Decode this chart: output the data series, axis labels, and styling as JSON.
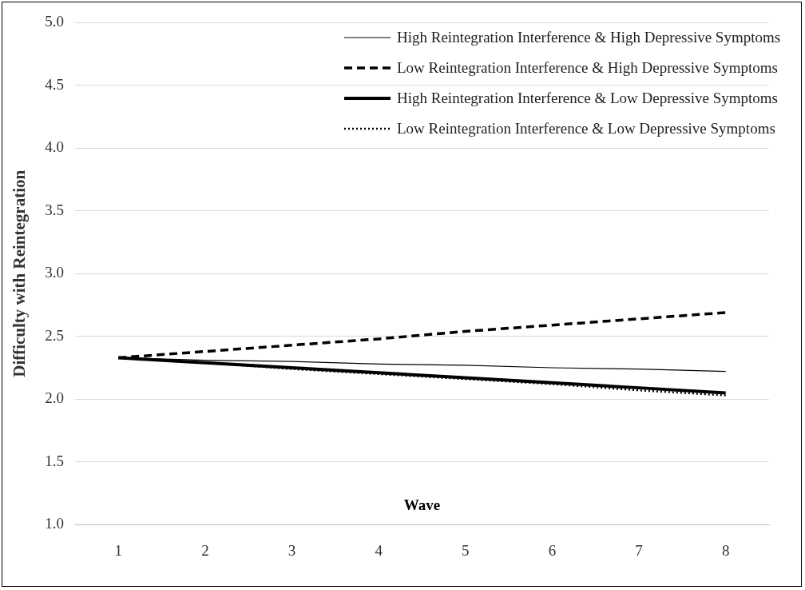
{
  "chart_data": {
    "type": "line",
    "xlabel": "Wave",
    "ylabel": "Difficulty with Reintegration",
    "categories": [
      "1",
      "2",
      "3",
      "4",
      "5",
      "6",
      "7",
      "8"
    ],
    "ylim": [
      1,
      5
    ],
    "yticks": [
      {
        "value": 1,
        "label": "1.0"
      },
      {
        "value": 1.5,
        "label": "1.5"
      },
      {
        "value": 2,
        "label": "2.0"
      },
      {
        "value": 2.5,
        "label": "2.5"
      },
      {
        "value": 3,
        "label": "3.0"
      },
      {
        "value": 3.5,
        "label": "3.5"
      },
      {
        "value": 4,
        "label": "4.0"
      },
      {
        "value": 4.5,
        "label": "4.5"
      },
      {
        "value": 5,
        "label": "5.0"
      }
    ],
    "grid": "y",
    "legend": "top right",
    "marker": "none",
    "series": [
      {
        "name": "High Reintegration Interference & High Depressive Symptoms",
        "color": "#000000",
        "line_style": "solid",
        "values": [
          2.33,
          2.31,
          2.3,
          2.28,
          2.27,
          2.25,
          2.24,
          2.22
        ]
      },
      {
        "name": "Low Reintegration Interference & High Depressive Symptoms",
        "color": "#000000",
        "line_style": "dashed",
        "values": [
          2.33,
          2.38,
          2.43,
          2.48,
          2.54,
          2.59,
          2.64,
          2.69
        ]
      },
      {
        "name": "High Reintegration Interference & Low Depressive Symptoms",
        "color": "#000000",
        "line_style": "solid",
        "values": [
          2.33,
          2.29,
          2.25,
          2.21,
          2.17,
          2.13,
          2.09,
          2.05
        ]
      },
      {
        "name": "Low Reintegration Interference & Low Depressive Symptoms",
        "color": "#000000",
        "line_style": "dotted",
        "values": [
          2.33,
          2.29,
          2.24,
          2.2,
          2.16,
          2.12,
          2.07,
          2.03
        ]
      }
    ]
  }
}
